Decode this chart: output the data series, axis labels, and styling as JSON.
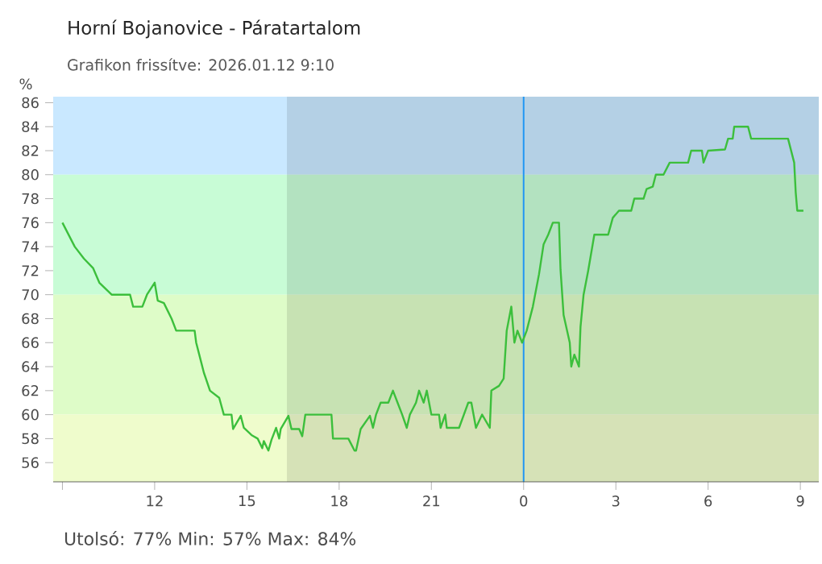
{
  "chart_data": {
    "type": "line",
    "title": "Horní Bojanovice - Páratartalom",
    "subtitle": "Grafikon frissítve: 2026.01.12 9:10",
    "ylabel": "%",
    "annotations": [
      "Utolsó: 77%  Min: 57%  Max: 84%"
    ],
    "xlim": [
      "2026-01-11T08:42",
      "2026-01-12T09:36"
    ],
    "ylim": [
      54.4,
      86.5
    ],
    "xticks": [
      {
        "value": "2026-01-11T09:00",
        "label": null
      },
      {
        "value": "2026-01-11T12:00",
        "label": "12"
      },
      {
        "value": "2026-01-11T15:00",
        "label": "15"
      },
      {
        "value": "2026-01-11T18:00",
        "label": "18"
      },
      {
        "value": "2026-01-11T21:00",
        "label": "21"
      },
      {
        "value": "2026-01-12T00:00",
        "label": "0"
      },
      {
        "value": "2026-01-12T03:00",
        "label": "3"
      },
      {
        "value": "2026-01-12T06:00",
        "label": "6"
      },
      {
        "value": "2026-01-12T09:00",
        "label": "9"
      }
    ],
    "yticks": [
      56,
      58,
      60,
      62,
      64,
      66,
      68,
      70,
      72,
      74,
      76,
      78,
      80,
      82,
      84,
      86
    ],
    "bands": [
      {
        "axis": "y",
        "from": 80,
        "to": 86.5,
        "color": "#c9e8ff"
      },
      {
        "axis": "y",
        "from": 70,
        "to": 80,
        "color": "#c8fcd6"
      },
      {
        "axis": "y",
        "from": 60,
        "to": 70,
        "color": "#defcc8"
      },
      {
        "axis": "y",
        "from": 54.4,
        "to": 60,
        "color": "#effccc"
      },
      {
        "axis": "x",
        "from": "2026-01-11T16:18",
        "to": "2026-01-12T09:36",
        "color": "#000000"
      }
    ],
    "ref_lines": [
      {
        "axis": "x",
        "value": "2026-01-12T00:00",
        "color": "#2196f3"
      }
    ],
    "grid": false,
    "marker": "none",
    "line_style": "solid",
    "series": [
      {
        "color": "#3cbf3c",
        "x": [
          "2026-01-11T09:00",
          "2026-01-11T09:12",
          "2026-01-11T09:24",
          "2026-01-11T09:42",
          "2026-01-11T10:00",
          "2026-01-11T10:12",
          "2026-01-11T10:36",
          "2026-01-11T11:12",
          "2026-01-11T11:18",
          "2026-01-11T11:36",
          "2026-01-11T11:45",
          "2026-01-11T12:00",
          "2026-01-11T12:06",
          "2026-01-11T12:18",
          "2026-01-11T12:33",
          "2026-01-11T12:42",
          "2026-01-11T13:18",
          "2026-01-11T13:21",
          "2026-01-11T13:27",
          "2026-01-11T13:36",
          "2026-01-11T13:48",
          "2026-01-11T14:06",
          "2026-01-11T14:15",
          "2026-01-11T14:30",
          "2026-01-11T14:33",
          "2026-01-11T14:48",
          "2026-01-11T14:54",
          "2026-01-11T15:09",
          "2026-01-11T15:21",
          "2026-01-11T15:30",
          "2026-01-11T15:33",
          "2026-01-11T15:42",
          "2026-01-11T15:48",
          "2026-01-11T15:57",
          "2026-01-11T16:03",
          "2026-01-11T16:06",
          "2026-01-11T16:21",
          "2026-01-11T16:27",
          "2026-01-11T16:42",
          "2026-01-11T16:48",
          "2026-01-11T16:54",
          "2026-01-11T17:18",
          "2026-01-11T17:45",
          "2026-01-11T17:48",
          "2026-01-11T18:18",
          "2026-01-11T18:30",
          "2026-01-11T18:33",
          "2026-01-11T18:42",
          "2026-01-11T19:00",
          "2026-01-11T19:06",
          "2026-01-11T19:12",
          "2026-01-11T19:21",
          "2026-01-11T19:36",
          "2026-01-11T19:45",
          "2026-01-11T19:54",
          "2026-01-11T20:03",
          "2026-01-11T20:12",
          "2026-01-11T20:18",
          "2026-01-11T20:30",
          "2026-01-11T20:36",
          "2026-01-11T20:45",
          "2026-01-11T20:51",
          "2026-01-11T21:00",
          "2026-01-11T21:15",
          "2026-01-11T21:18",
          "2026-01-11T21:27",
          "2026-01-11T21:30",
          "2026-01-11T21:54",
          "2026-01-11T22:12",
          "2026-01-11T22:18",
          "2026-01-11T22:27",
          "2026-01-11T22:39",
          "2026-01-11T22:54",
          "2026-01-11T22:57",
          "2026-01-11T23:12",
          "2026-01-11T23:21",
          "2026-01-11T23:27",
          "2026-01-11T23:36",
          "2026-01-11T23:42",
          "2026-01-11T23:48",
          "2026-01-11T23:57",
          "2026-01-12T00:06",
          "2026-01-12T00:18",
          "2026-01-12T00:30",
          "2026-01-12T00:39",
          "2026-01-12T00:48",
          "2026-01-12T00:57",
          "2026-01-12T01:09",
          "2026-01-12T01:12",
          "2026-01-12T01:18",
          "2026-01-12T01:30",
          "2026-01-12T01:33",
          "2026-01-12T01:39",
          "2026-01-12T01:48",
          "2026-01-12T01:51",
          "2026-01-12T01:57",
          "2026-01-12T02:06",
          "2026-01-12T02:18",
          "2026-01-12T02:45",
          "2026-01-12T02:54",
          "2026-01-12T03:06",
          "2026-01-12T03:30",
          "2026-01-12T03:36",
          "2026-01-12T03:54",
          "2026-01-12T04:00",
          "2026-01-12T04:12",
          "2026-01-12T04:18",
          "2026-01-12T04:33",
          "2026-01-12T04:45",
          "2026-01-12T05:21",
          "2026-01-12T05:27",
          "2026-01-12T05:48",
          "2026-01-12T05:51",
          "2026-01-12T06:00",
          "2026-01-12T06:33",
          "2026-01-12T06:39",
          "2026-01-12T06:48",
          "2026-01-12T06:51",
          "2026-01-12T07:18",
          "2026-01-12T07:24",
          "2026-01-12T08:36",
          "2026-01-12T08:42",
          "2026-01-12T08:48",
          "2026-01-12T08:51",
          "2026-01-12T08:54",
          "2026-01-12T09:06"
        ],
        "values": [
          76,
          75,
          74,
          73,
          72.2,
          71,
          70,
          70,
          69,
          69,
          70,
          71,
          69.5,
          69.3,
          68,
          67,
          67,
          66,
          65,
          63.5,
          62,
          61.4,
          60,
          60,
          58.8,
          59.9,
          58.9,
          58.3,
          58,
          57.2,
          57.8,
          57,
          57.9,
          58.9,
          58,
          58.8,
          59.9,
          58.8,
          58.8,
          58.2,
          60,
          60,
          60,
          58,
          58,
          57,
          57,
          58.8,
          59.9,
          58.9,
          60,
          61,
          61,
          62,
          61,
          60,
          58.9,
          60,
          61,
          62,
          61,
          62,
          60,
          60,
          58.9,
          60,
          58.9,
          58.9,
          61,
          61,
          58.9,
          60,
          58.9,
          62,
          62.4,
          63,
          67,
          69,
          66,
          67,
          66,
          67,
          69,
          71.7,
          74.2,
          75,
          76,
          76,
          72.1,
          68.3,
          66,
          64,
          65,
          64,
          67.3,
          70,
          72,
          75,
          75,
          76.4,
          77,
          77,
          78,
          78,
          78.8,
          79,
          80,
          80,
          81,
          81,
          82,
          82,
          81,
          82,
          82.1,
          83,
          83,
          84,
          84,
          83,
          83,
          82,
          81,
          78.5,
          77,
          77
        ]
      }
    ]
  }
}
